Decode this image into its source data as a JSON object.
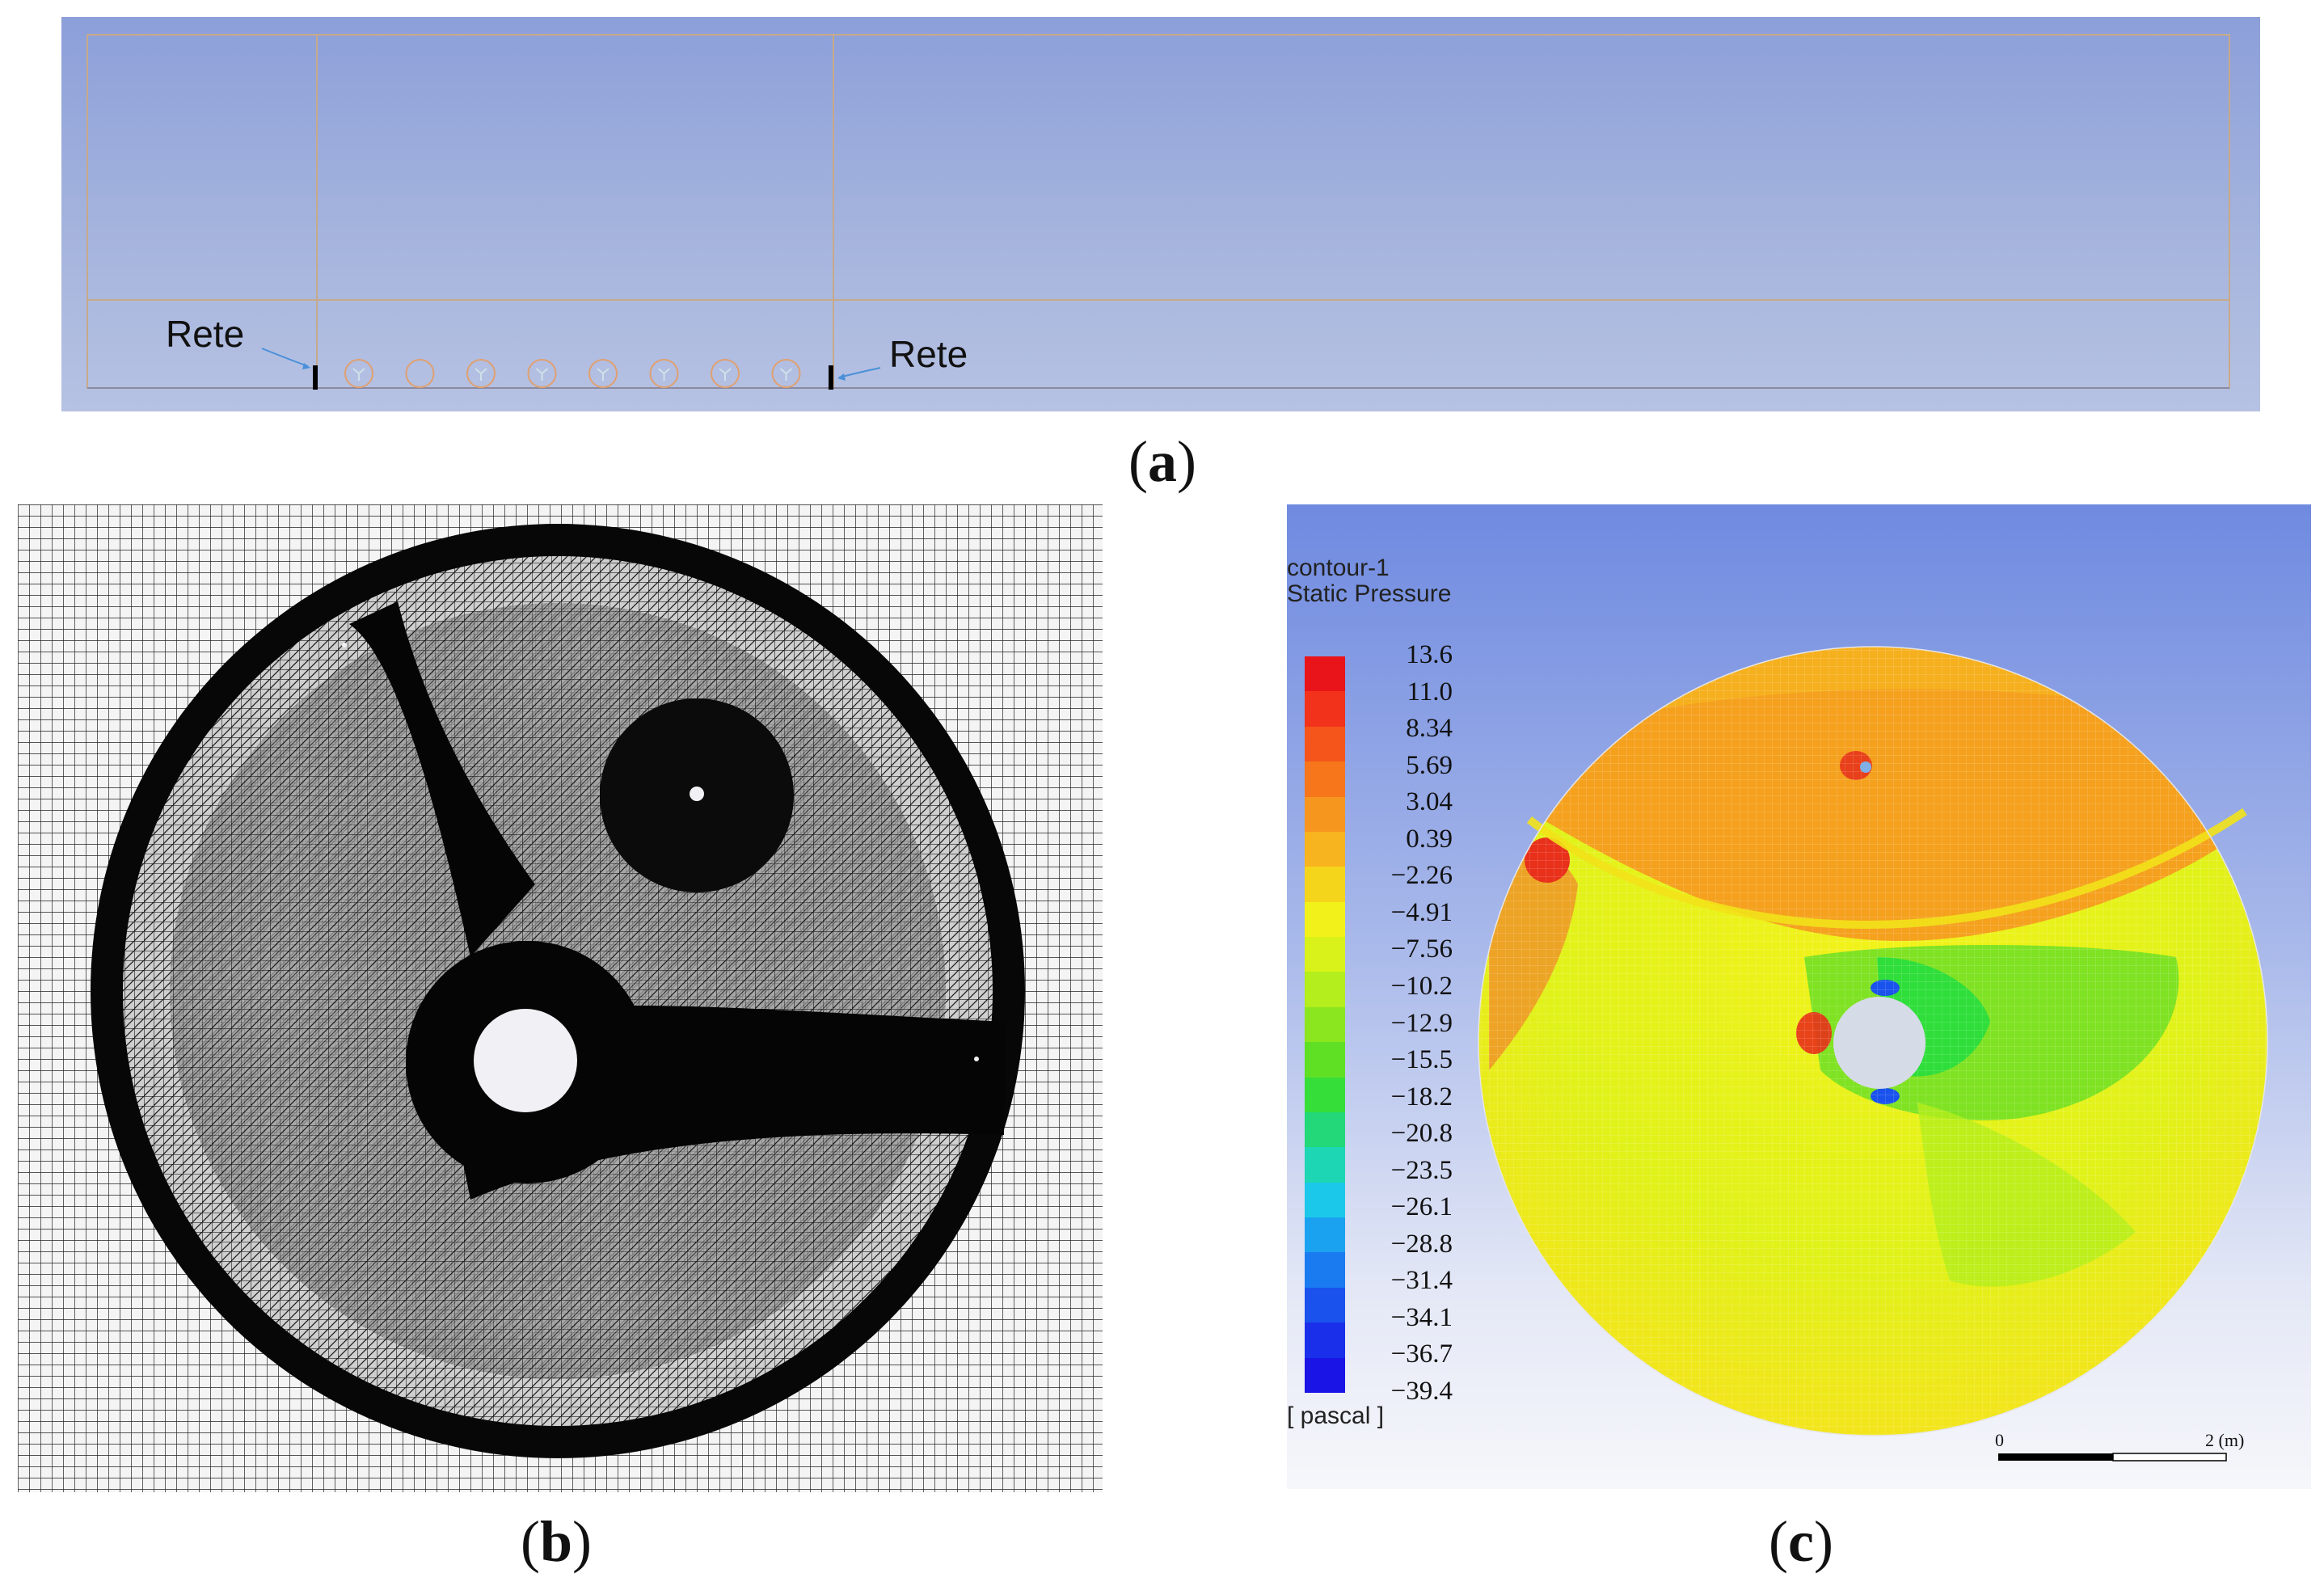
{
  "panel_a": {
    "caption": "a",
    "annotations": [
      "Rete",
      "Rete"
    ],
    "cylinder_count": 8
  },
  "panel_b": {
    "caption": "b"
  },
  "panel_c": {
    "caption": "c",
    "legend": {
      "title_line1": "contour-1",
      "title_line2": "Static Pressure",
      "unit": "[ pascal ]",
      "ticks": [
        "13.6",
        "11.0",
        "8.34",
        "5.69",
        "3.04",
        "0.39",
        "−2.26",
        "−4.91",
        "−7.56",
        "−10.2",
        "−12.9",
        "−15.5",
        "−18.2",
        "−20.8",
        "−23.5",
        "−26.1",
        "−28.8",
        "−31.4",
        "−34.1",
        "−36.7",
        "−39.4"
      ],
      "colors": [
        "#e8141a",
        "#f2321a",
        "#f5551a",
        "#f7761c",
        "#f7961e",
        "#f7b41e",
        "#f5d51c",
        "#f2f21a",
        "#d9f21a",
        "#b4ee1c",
        "#8ce61f",
        "#5fe024",
        "#36de3a",
        "#22d878",
        "#1cd6b4",
        "#1cc8ea",
        "#1aa2f0",
        "#1a7af0",
        "#1a52ee",
        "#1a2fea",
        "#1a14e6"
      ]
    },
    "scale_bar": {
      "start_label": "0",
      "end_label": "2 (m)"
    }
  }
}
